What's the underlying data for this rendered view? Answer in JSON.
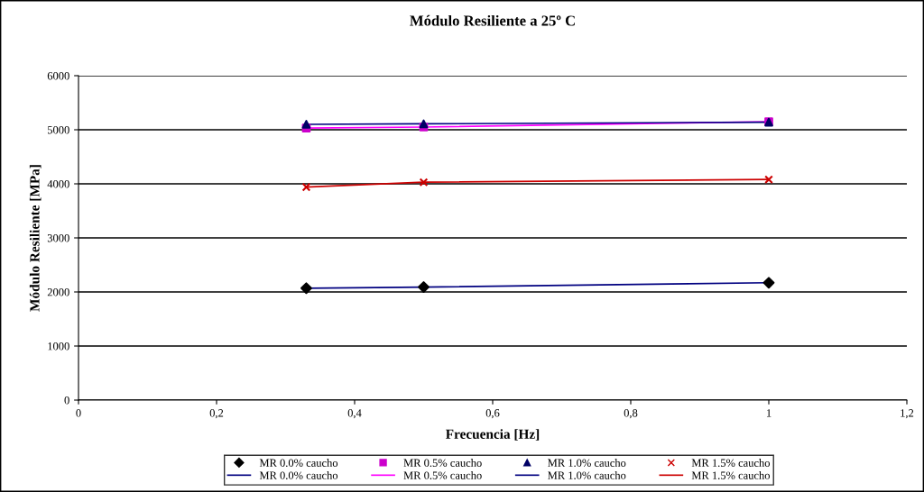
{
  "chart_data": {
    "type": "line",
    "title": "Módulo Resiliente a 25º C",
    "xlabel": "Frecuencia [Hz]",
    "ylabel": "Módulo Resiliente [MPa]",
    "x": [
      0.33,
      0.5,
      1
    ],
    "series": [
      {
        "name": "MR 0.0% caucho",
        "type": "scatter",
        "marker": "diamond",
        "color": "#000000",
        "values": [
          2070,
          2090,
          2170
        ]
      },
      {
        "name": "MR 0.0% caucho",
        "marker": "none",
        "color": "#000080",
        "values": [
          2070,
          2090,
          2170
        ]
      },
      {
        "name": "MR 0.5% caucho",
        "type": "scatter",
        "marker": "square",
        "color": "#cc00cc",
        "values": [
          5030,
          5050,
          5150
        ]
      },
      {
        "name": "MR 0.5% caucho",
        "marker": "none",
        "color": "#ff00ff",
        "values": [
          5030,
          5050,
          5150
        ]
      },
      {
        "name": "MR 1.0% caucho",
        "type": "scatter",
        "marker": "triangle",
        "color": "#000066",
        "values": [
          5100,
          5110,
          5140
        ]
      },
      {
        "name": "MR 1.0% caucho",
        "marker": "none",
        "color": "#000080",
        "values": [
          5100,
          5110,
          5140
        ]
      },
      {
        "name": "MR 1.5% caucho",
        "type": "scatter",
        "marker": "cross",
        "color": "#cc0000",
        "values": [
          3940,
          4030,
          4080
        ]
      },
      {
        "name": "MR 1.5% caucho",
        "marker": "none",
        "color": "#cc0000",
        "values": [
          3940,
          4030,
          4080
        ]
      }
    ],
    "xlim": [
      0,
      1.2
    ],
    "xticks": [
      0,
      {
        "value": 0.2,
        "label": "0,2"
      },
      {
        "value": 0.4,
        "label": "0,4"
      },
      {
        "value": 0.6,
        "label": "0,6"
      },
      {
        "value": 0.8,
        "label": "0,8"
      },
      1,
      {
        "value": 1.2,
        "label": "1,2"
      }
    ],
    "ylim": [
      0,
      6000
    ],
    "yticks": [
      0,
      1000,
      2000,
      3000,
      4000,
      5000,
      6000
    ],
    "grid": "y",
    "legend": "bottom"
  }
}
